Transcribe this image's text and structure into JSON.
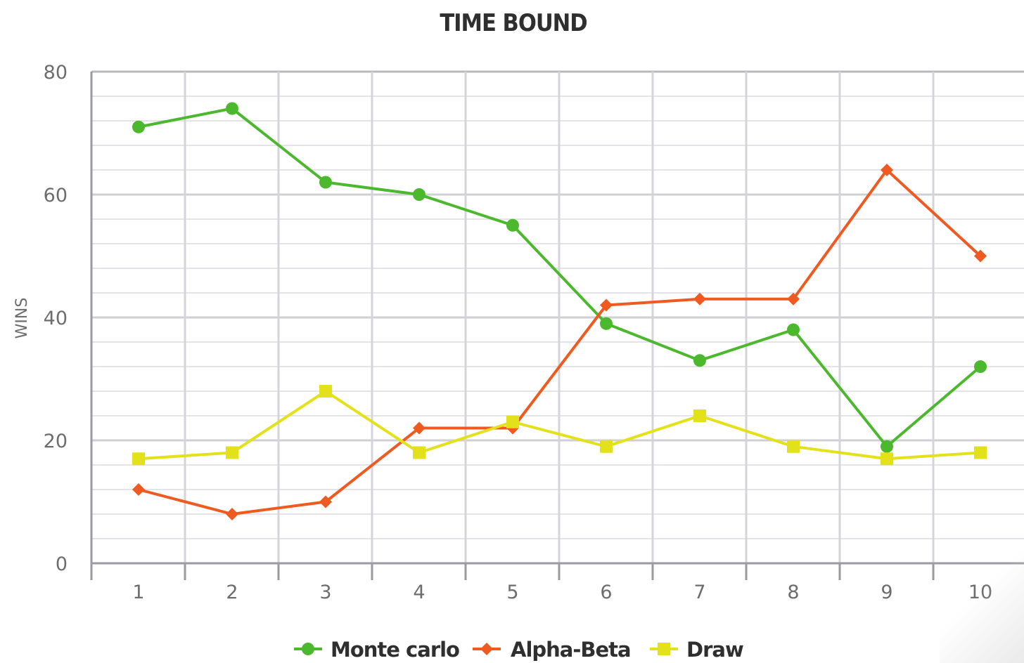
{
  "chart_data": {
    "type": "line",
    "title": "TIME BOUND",
    "xlabel": "",
    "ylabel": "WINS",
    "categories": [
      "1",
      "2",
      "3",
      "4",
      "5",
      "6",
      "7",
      "8",
      "9",
      "10"
    ],
    "ylim": [
      0,
      80
    ],
    "yticks": [
      "0",
      "20",
      "40",
      "60",
      "80"
    ],
    "grid": true,
    "legend_position": "bottom",
    "series": [
      {
        "name": "Monte carlo",
        "color": "#4cb82e",
        "marker": "circle",
        "values": [
          71,
          74,
          62,
          60,
          55,
          39,
          33,
          38,
          19,
          32
        ]
      },
      {
        "name": "Alpha-Beta",
        "color": "#ee5a1f",
        "marker": "diamond",
        "values": [
          12,
          8,
          10,
          22,
          22,
          42,
          43,
          43,
          64,
          50
        ]
      },
      {
        "name": "Draw",
        "color": "#e3e21a",
        "marker": "square",
        "values": [
          17,
          18,
          28,
          18,
          23,
          19,
          24,
          19,
          17,
          18
        ]
      }
    ]
  }
}
